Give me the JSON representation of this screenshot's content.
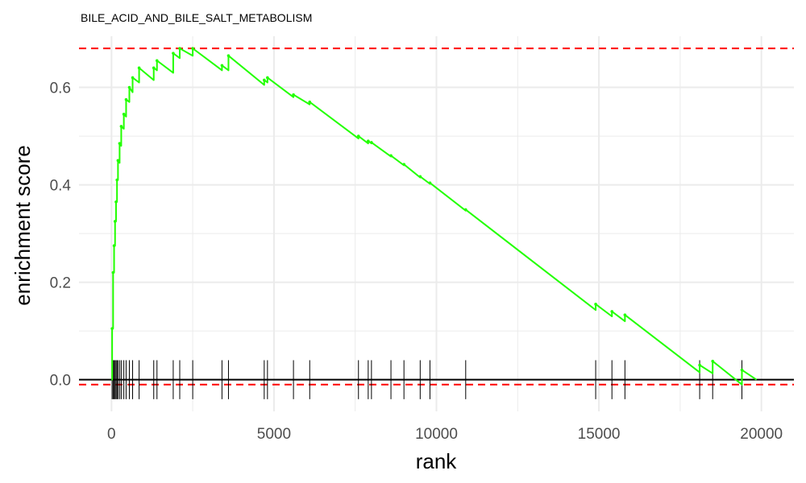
{
  "chart_data": {
    "type": "line",
    "title": "BILE_ACID_AND_BILE_SALT_METABOLISM",
    "xlabel": "rank",
    "ylabel": "enrichment score",
    "xlim": [
      -1000,
      21000
    ],
    "ylim": [
      -0.065,
      0.705
    ],
    "xticks": [
      0,
      5000,
      10000,
      15000,
      20000
    ],
    "yticks": [
      0.0,
      0.2,
      0.4,
      0.6
    ],
    "x_tick_labels": [
      "0",
      "5000",
      "10000",
      "15000",
      "20000"
    ],
    "y_tick_labels": [
      "0.0",
      "0.2",
      "0.4",
      "0.6"
    ],
    "grid": true,
    "legend": "none",
    "colors": {
      "curve": "#22ff00",
      "threshold": "#ff0000",
      "zero_line": "#000000",
      "grid": "#ebebeb",
      "hit": "#000000"
    },
    "max_es": 0.68,
    "min_es": -0.01,
    "hits": [
      20,
      50,
      80,
      110,
      140,
      170,
      200,
      250,
      300,
      380,
      450,
      550,
      650,
      850,
      1300,
      1400,
      1900,
      2100,
      2500,
      3400,
      3600,
      4700,
      4800,
      5600,
      6100,
      7600,
      7900,
      8000,
      8600,
      9000,
      9500,
      9800,
      10900,
      14900,
      15400,
      15800,
      18100,
      18500,
      19400
    ],
    "series": [
      {
        "x": [
          0,
          20,
          20,
          50,
          50,
          80,
          80,
          110,
          110,
          140,
          140,
          170,
          170,
          200,
          200,
          250,
          250,
          300,
          300,
          380,
          380,
          450,
          450,
          550,
          550,
          650,
          650,
          850,
          850,
          1300,
          1300,
          1400,
          1400,
          1900,
          1900,
          2100,
          2100,
          2500,
          2500,
          3400,
          3400,
          3600,
          3600,
          4700,
          4700,
          4800,
          4800,
          5600,
          5600,
          6100,
          6100,
          7600,
          7600,
          7900,
          7900,
          8000,
          8000,
          8600,
          8600,
          9000,
          9000,
          9500,
          9500,
          9800,
          9800,
          10900,
          10900,
          14900,
          14900,
          15400,
          15400,
          15800,
          15800,
          18100,
          18100,
          18500,
          18500,
          19400,
          19400,
          19850
        ],
        "y": [
          0.0,
          0.0,
          0.105,
          0.105,
          0.22,
          0.22,
          0.275,
          0.275,
          0.325,
          0.325,
          0.365,
          0.365,
          0.41,
          0.41,
          0.45,
          0.445,
          0.485,
          0.48,
          0.52,
          0.515,
          0.545,
          0.54,
          0.575,
          0.57,
          0.6,
          0.59,
          0.62,
          0.61,
          0.64,
          0.615,
          0.64,
          0.635,
          0.655,
          0.63,
          0.67,
          0.66,
          0.68,
          0.665,
          0.68,
          0.635,
          0.645,
          0.635,
          0.665,
          0.605,
          0.615,
          0.61,
          0.62,
          0.58,
          0.585,
          0.565,
          0.57,
          0.495,
          0.5,
          0.485,
          0.49,
          0.485,
          0.487,
          0.458,
          0.46,
          0.44,
          0.442,
          0.415,
          0.417,
          0.402,
          0.404,
          0.347,
          0.349,
          0.143,
          0.155,
          0.13,
          0.14,
          0.12,
          0.133,
          0.015,
          0.03,
          0.013,
          0.038,
          -0.01,
          0.02,
          0.0
        ]
      }
    ]
  }
}
